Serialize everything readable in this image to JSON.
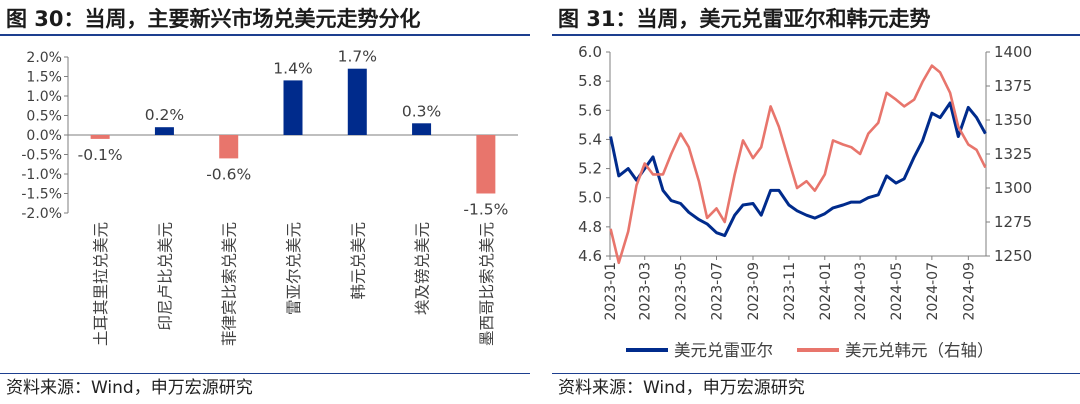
{
  "chart_data": [
    {
      "type": "bar",
      "title": "图 30：当周，主要新兴市场兑美元走势分化",
      "source": "资料来源：Wind，申万宏源研究",
      "categories": [
        "土耳其里拉兑美元",
        "印尼卢比兑美元",
        "菲律宾比索兑美元",
        "雷亚尔兑美元",
        "韩元兑美元",
        "埃及镑兑美元",
        "墨西哥比索兑美元"
      ],
      "values": [
        -0.1,
        0.2,
        -0.6,
        1.4,
        1.7,
        0.3,
        -1.5
      ],
      "data_labels": [
        "-0.1%",
        "0.2%",
        "-0.6%",
        "1.4%",
        "1.7%",
        "0.3%",
        "-1.5%"
      ],
      "ylim": [
        -2.0,
        2.0
      ],
      "yticks": [
        "-2.0%",
        "-1.5%",
        "-1.0%",
        "-0.5%",
        "0.0%",
        "0.5%",
        "1.0%",
        "1.5%",
        "2.0%"
      ],
      "colors": {
        "positive": "#002b8c",
        "negative": "#e8756c"
      }
    },
    {
      "type": "line",
      "title": "图 31：当周，美元兑雷亚尔和韩元走势",
      "source": "资料来源：Wind，申万宏源研究",
      "x_ticks": [
        "2023-01",
        "2023-03",
        "2023-05",
        "2023-07",
        "2023-09",
        "2023-11",
        "2024-01",
        "2024-03",
        "2024-05",
        "2024-07",
        "2024-09"
      ],
      "ylim_left": [
        4.6,
        6.0
      ],
      "ylim_right": [
        1250,
        1400
      ],
      "yticks_left": [
        "4.6",
        "4.8",
        "5.0",
        "5.2",
        "5.4",
        "5.6",
        "5.8",
        "6.0"
      ],
      "yticks_right": [
        "1250",
        "1275",
        "1300",
        "1325",
        "1350",
        "1375",
        "1400"
      ],
      "series": [
        {
          "name": "美元兑雷亚尔",
          "axis": "left",
          "color": "#002b8c",
          "x": [
            "2023-01-02",
            "2023-01-16",
            "2023-02-01",
            "2023-02-15",
            "2023-03-01",
            "2023-03-15",
            "2023-04-01",
            "2023-04-15",
            "2023-05-01",
            "2023-05-15",
            "2023-06-01",
            "2023-06-15",
            "2023-07-01",
            "2023-07-15",
            "2023-08-01",
            "2023-08-15",
            "2023-09-01",
            "2023-09-15",
            "2023-10-01",
            "2023-10-15",
            "2023-11-01",
            "2023-11-15",
            "2023-12-01",
            "2023-12-15",
            "2024-01-01",
            "2024-01-15",
            "2024-02-01",
            "2024-02-15",
            "2024-03-01",
            "2024-03-15",
            "2024-04-01",
            "2024-04-15",
            "2024-05-01",
            "2024-05-15",
            "2024-06-01",
            "2024-06-15",
            "2024-07-01",
            "2024-07-15",
            "2024-08-01",
            "2024-08-15",
            "2024-09-01",
            "2024-09-15",
            "2024-09-30"
          ],
          "values": [
            5.42,
            5.15,
            5.2,
            5.12,
            5.2,
            5.28,
            5.05,
            4.98,
            4.96,
            4.9,
            4.85,
            4.82,
            4.76,
            4.74,
            4.88,
            4.95,
            4.96,
            4.88,
            5.05,
            5.05,
            4.95,
            4.91,
            4.88,
            4.86,
            4.89,
            4.93,
            4.95,
            4.97,
            4.97,
            5.0,
            5.02,
            5.15,
            5.1,
            5.13,
            5.28,
            5.39,
            5.58,
            5.55,
            5.65,
            5.42,
            5.62,
            5.55,
            5.44
          ]
        },
        {
          "name": "美元兑韩元（右轴）",
          "axis": "right",
          "color": "#e8756c",
          "x": [
            "2023-01-02",
            "2023-01-16",
            "2023-02-01",
            "2023-02-15",
            "2023-03-01",
            "2023-03-15",
            "2023-04-01",
            "2023-04-15",
            "2023-05-01",
            "2023-05-15",
            "2023-06-01",
            "2023-06-15",
            "2023-07-01",
            "2023-07-15",
            "2023-08-01",
            "2023-08-15",
            "2023-09-01",
            "2023-09-15",
            "2023-10-01",
            "2023-10-15",
            "2023-11-01",
            "2023-11-15",
            "2023-12-01",
            "2023-12-15",
            "2024-01-01",
            "2024-01-15",
            "2024-02-01",
            "2024-02-15",
            "2024-03-01",
            "2024-03-15",
            "2024-04-01",
            "2024-04-15",
            "2024-05-01",
            "2024-05-15",
            "2024-06-01",
            "2024-06-15",
            "2024-07-01",
            "2024-07-15",
            "2024-08-01",
            "2024-08-15",
            "2024-09-01",
            "2024-09-15",
            "2024-09-30"
          ],
          "values": [
            1270,
            1245,
            1268,
            1302,
            1318,
            1310,
            1310,
            1325,
            1340,
            1330,
            1305,
            1278,
            1285,
            1275,
            1310,
            1335,
            1322,
            1330,
            1360,
            1345,
            1320,
            1300,
            1305,
            1298,
            1310,
            1335,
            1332,
            1330,
            1325,
            1340,
            1348,
            1370,
            1365,
            1360,
            1365,
            1378,
            1390,
            1385,
            1370,
            1345,
            1332,
            1328,
            1315
          ]
        }
      ]
    }
  ]
}
